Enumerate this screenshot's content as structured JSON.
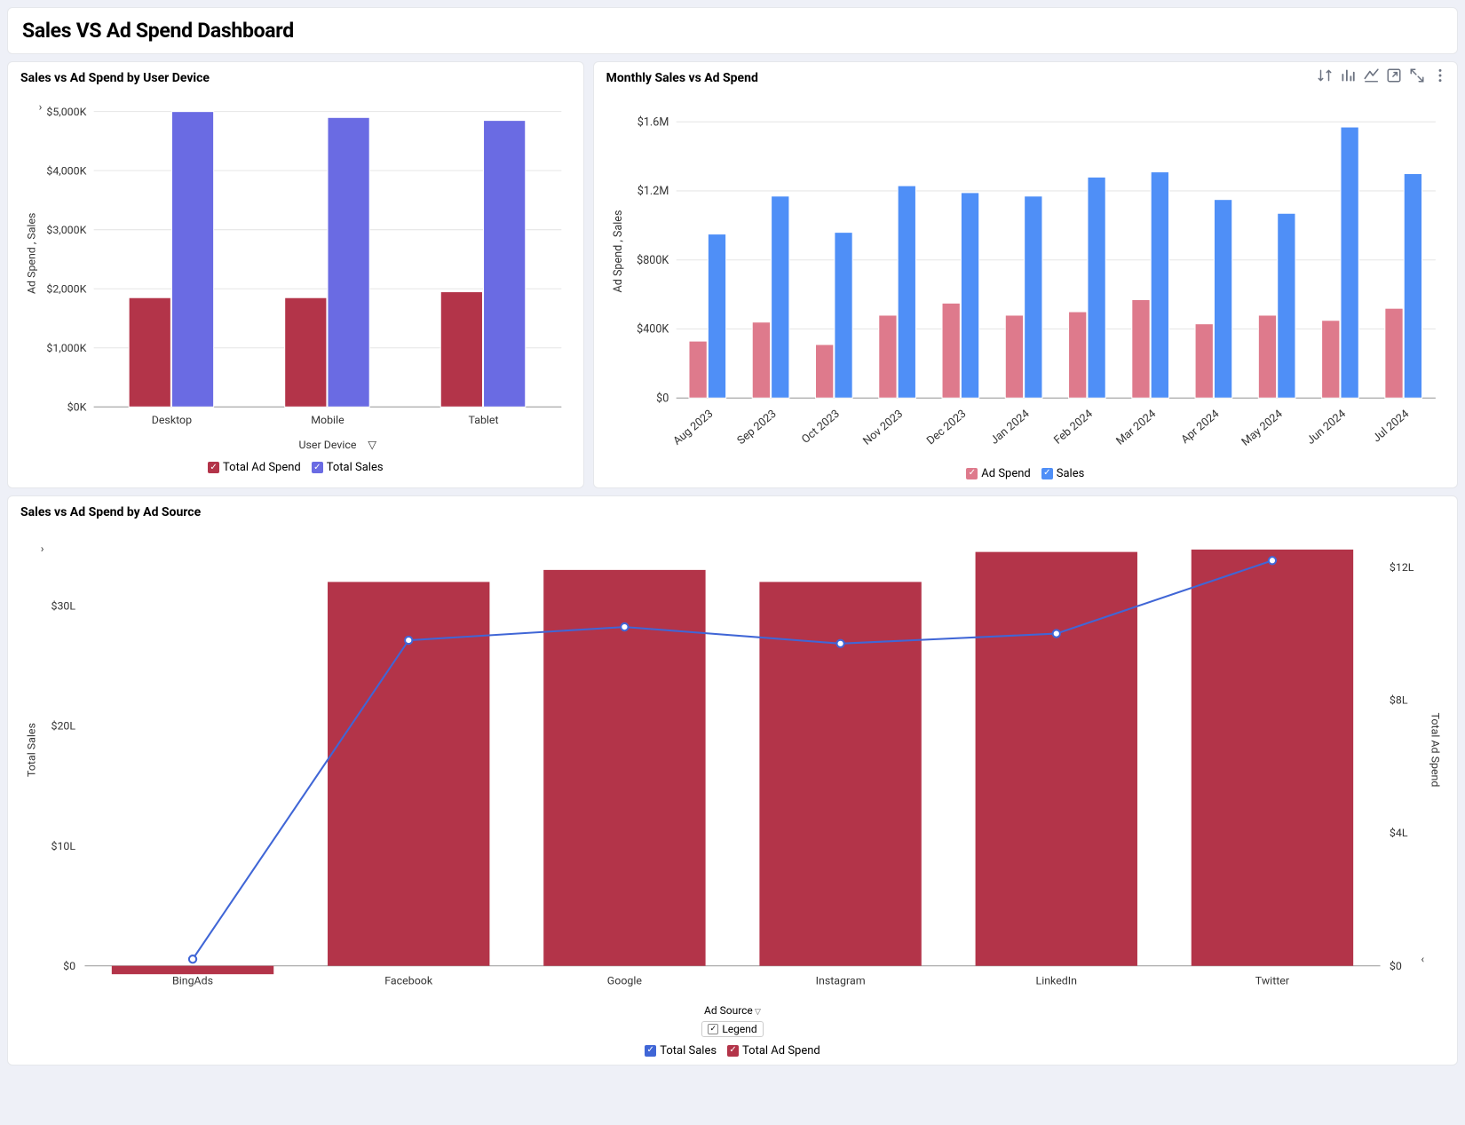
{
  "dashboard_title": "Sales VS Ad Spend Dashboard",
  "colors": {
    "bg": "#eef0f7",
    "card_bg": "#ffffff",
    "border": "#e5e7eb",
    "text": "#000000",
    "grid": "#e6e6e6",
    "red": "#b33449",
    "purple": "#6a6be3",
    "pink": "#de7a8c",
    "blue": "#4f8ff7",
    "line_blue": "#4066d6",
    "icon": "#6b7280"
  },
  "chart_device": {
    "type": "bar-grouped",
    "title": "Sales vs Ad Spend by User Device",
    "x_label": "User Device",
    "y_label": "Ad Spend , Sales",
    "categories": [
      "Desktop",
      "Mobile",
      "Tablet"
    ],
    "y_ticks": [
      0,
      1000,
      2000,
      3000,
      4000,
      5000
    ],
    "y_tick_labels": [
      "$0K",
      "$1,000K",
      "$2,000K",
      "$3,000K",
      "$4,000K",
      "$5,000K"
    ],
    "y_max": 5200,
    "series": [
      {
        "name": "Total Ad Spend",
        "color": "#b33449",
        "values": [
          1850,
          1850,
          1950
        ]
      },
      {
        "name": "Total Sales",
        "color": "#6a6be3",
        "values": [
          5000,
          4900,
          4850
        ]
      }
    ],
    "legend": [
      {
        "label": "Total Ad Spend",
        "color": "#b33449"
      },
      {
        "label": "Total Sales",
        "color": "#6a6be3"
      }
    ],
    "bar_group_width_ratio": 0.55,
    "label_fontsize": 12
  },
  "chart_monthly": {
    "type": "bar-grouped",
    "title": "Monthly Sales vs Ad Spend",
    "y_label": "Ad Spend , Sales",
    "categories": [
      "Aug 2023",
      "Sep 2023",
      "Oct 2023",
      "Nov 2023",
      "Dec 2023",
      "Jan 2024",
      "Feb 2024",
      "Mar 2024",
      "Apr 2024",
      "May 2024",
      "Jun 2024",
      "Jul 2024"
    ],
    "y_ticks": [
      0,
      400000,
      800000,
      1200000,
      1600000
    ],
    "y_tick_labels": [
      "$0",
      "$400K",
      "$800K",
      "$1.2M",
      "$1.6M"
    ],
    "y_max": 1700000,
    "series": [
      {
        "name": "Ad Spend",
        "color": "#de7a8c",
        "values": [
          330000,
          440000,
          310000,
          480000,
          550000,
          480000,
          500000,
          570000,
          430000,
          480000,
          450000,
          520000
        ]
      },
      {
        "name": "Sales",
        "color": "#4f8ff7",
        "values": [
          950000,
          1170000,
          960000,
          1230000,
          1190000,
          1170000,
          1280000,
          1310000,
          1150000,
          1070000,
          1570000,
          1300000
        ]
      }
    ],
    "legend": [
      {
        "label": "Ad Spend",
        "color": "#de7a8c"
      },
      {
        "label": "Sales",
        "color": "#4f8ff7"
      }
    ],
    "bar_group_width_ratio": 0.6,
    "rotate_x_labels": -40,
    "label_fontsize": 12,
    "toolbar_icons": [
      "sort-icon",
      "chart-type-icon",
      "quick-filter-icon",
      "open-icon",
      "expand-icon",
      "more-icon"
    ]
  },
  "chart_adsource": {
    "type": "bar-line-combo",
    "title": "Sales vs Ad Spend by Ad Source",
    "x_label": "Ad Source",
    "y_left_label": "Total Sales",
    "y_right_label": "Total Ad Spend",
    "categories": [
      "BingAds",
      "Facebook",
      "Google",
      "Instagram",
      "LinkedIn",
      "Twitter"
    ],
    "y_left_ticks": [
      0,
      10,
      20,
      30
    ],
    "y_left_tick_labels": [
      "$0",
      "$10L",
      "$20L",
      "$30L"
    ],
    "y_left_max": 36,
    "y_right_ticks": [
      0,
      4,
      8,
      12
    ],
    "y_right_tick_labels": [
      "$0",
      "$4L",
      "$8L",
      "$12L"
    ],
    "y_right_max": 13,
    "bars": {
      "name": "Total Ad Spend",
      "color": "#b33449",
      "values": [
        -0.7,
        32,
        33,
        32,
        34.5,
        34.7
      ]
    },
    "line": {
      "name": "Total Sales",
      "color": "#4066d6",
      "values": [
        0.2,
        9.8,
        10.2,
        9.7,
        10.0,
        12.2
      ]
    },
    "legend_header": "Legend",
    "legend": [
      {
        "label": "Total Sales",
        "color": "#4066d6"
      },
      {
        "label": "Total Ad Spend",
        "color": "#b33449"
      }
    ],
    "bar_width_ratio": 0.75,
    "marker_radius": 4,
    "label_fontsize": 12
  }
}
